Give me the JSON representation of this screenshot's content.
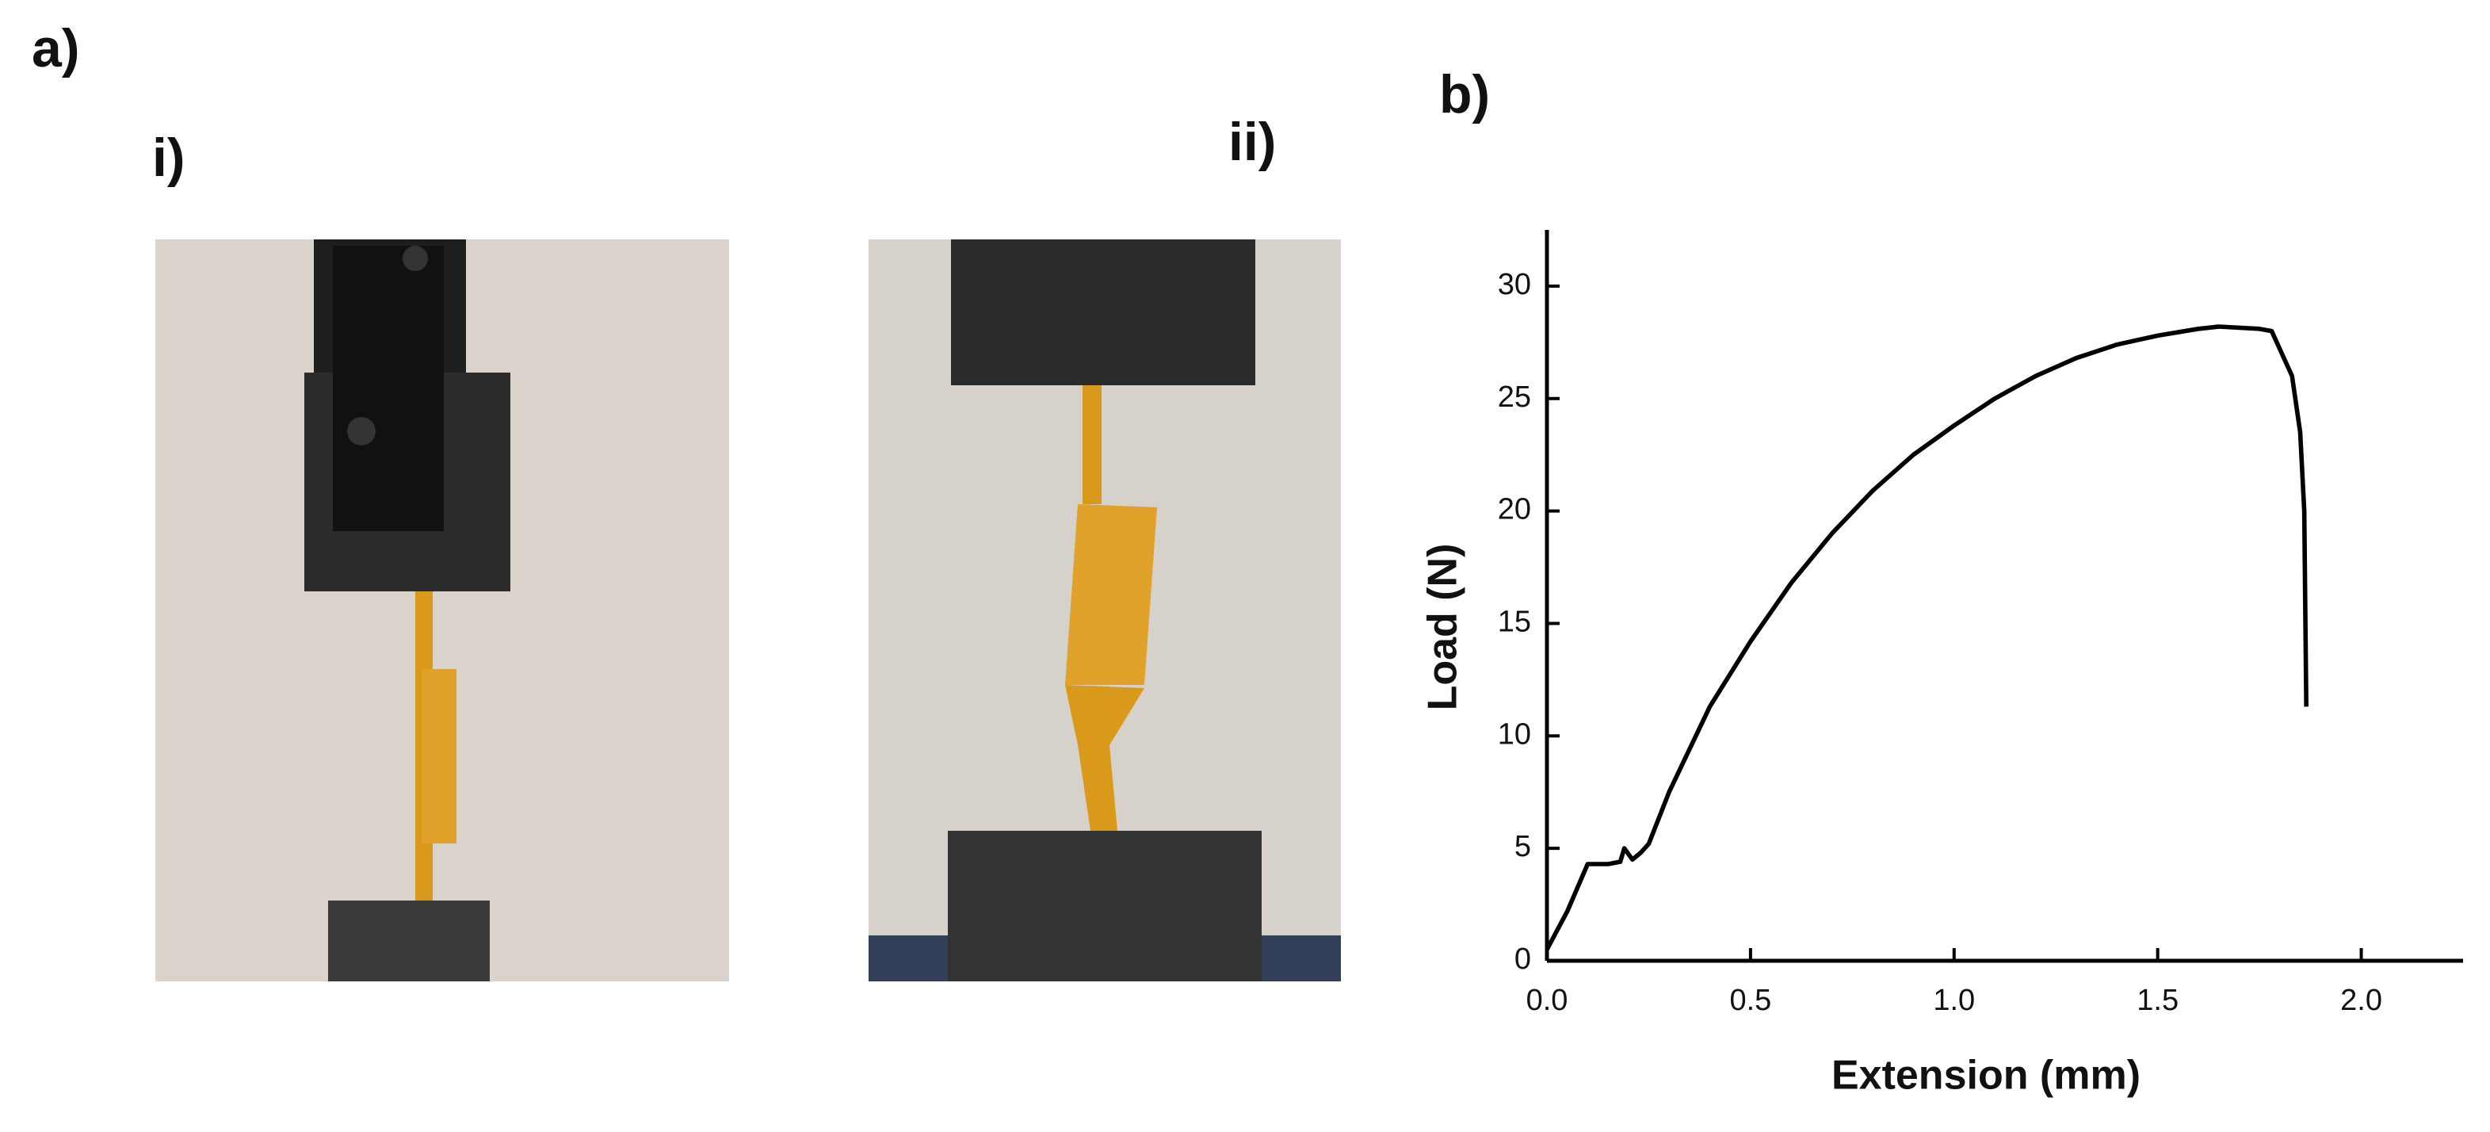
{
  "labels": {
    "a": "a)",
    "i": "i)",
    "ii": "ii)",
    "b": "b)"
  },
  "chart_data": {
    "type": "line",
    "xlabel": "Extension (mm)",
    "ylabel": "Load (N)",
    "color": "#000000",
    "x": [
      0,
      0.05,
      0.1,
      0.15,
      0.18,
      0.19,
      0.21,
      0.23,
      0.25,
      0.3,
      0.4,
      0.5,
      0.6,
      0.7,
      0.8,
      0.9,
      1.0,
      1.1,
      1.2,
      1.3,
      1.4,
      1.5,
      1.6,
      1.65,
      1.75,
      1.78,
      1.8,
      1.83,
      1.85,
      1.86,
      1.865
    ],
    "values": [
      0.5,
      2.2,
      4.3,
      4.3,
      4.4,
      5.0,
      4.5,
      4.8,
      5.2,
      7.5,
      11.3,
      14.2,
      16.8,
      19.0,
      20.9,
      22.5,
      23.8,
      25.0,
      26.0,
      26.8,
      27.4,
      27.8,
      28.1,
      28.2,
      28.1,
      28.0,
      27.2,
      26.0,
      23.5,
      20.0,
      11.3
    ],
    "xlim": [
      0,
      2.25
    ],
    "ylim": [
      0,
      32.5
    ],
    "xticks": [
      {
        "value": 0,
        "label": "0.0"
      },
      0.5,
      {
        "value": 1,
        "label": "1.0"
      },
      1.5,
      {
        "value": 2,
        "label": "2.0"
      }
    ],
    "yticks": [
      0,
      5,
      10,
      15,
      20,
      25,
      30
    ]
  }
}
